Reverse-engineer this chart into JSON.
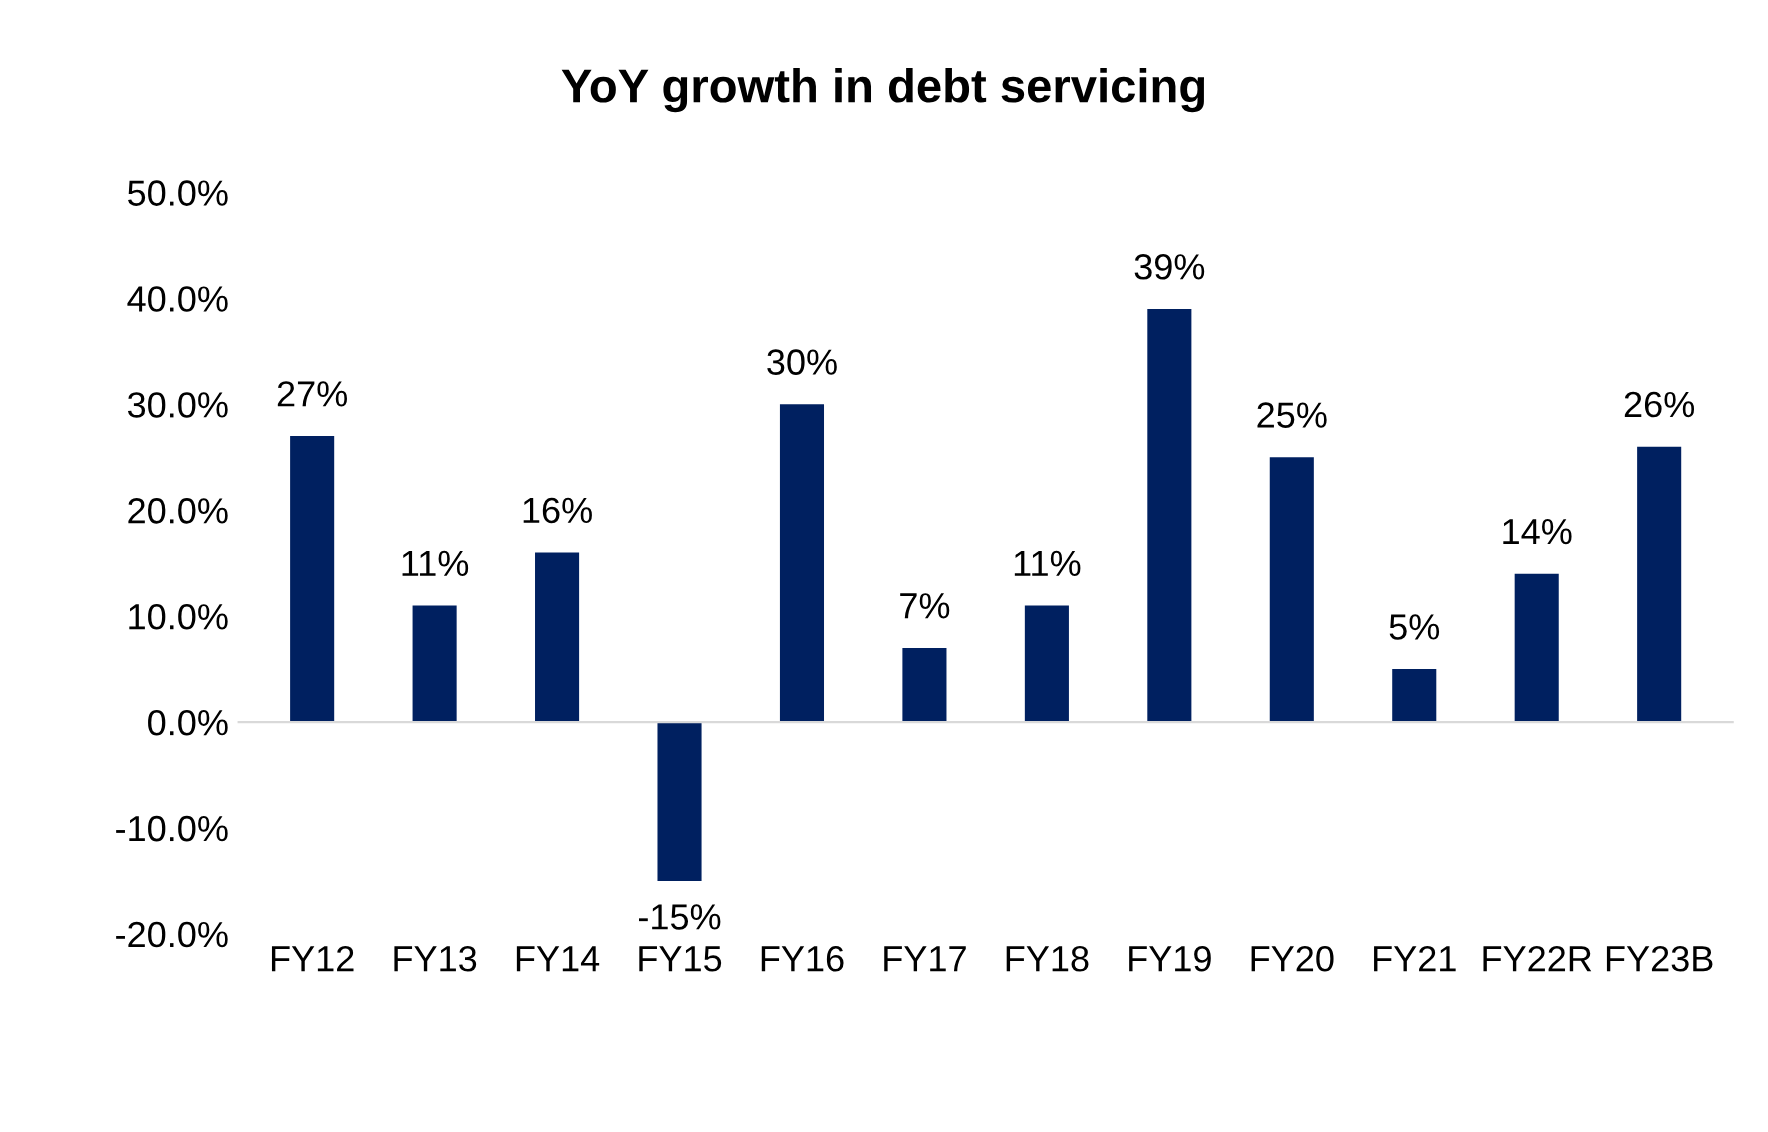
{
  "chart_data": {
    "type": "bar",
    "title": "YoY growth in debt servicing",
    "categories": [
      "FY12",
      "FY13",
      "FY14",
      "FY15",
      "FY16",
      "FY17",
      "FY18",
      "FY19",
      "FY20",
      "FY21",
      "FY22R",
      "FY23B"
    ],
    "values": [
      27,
      11,
      16,
      -15,
      30,
      7,
      11,
      39,
      25,
      5,
      14,
      26
    ],
    "value_labels": [
      "27%",
      "11%",
      "16%",
      "-15%",
      "30%",
      "7%",
      "11%",
      "39%",
      "25%",
      "5%",
      "14%",
      "26%"
    ],
    "color": "#002060",
    "ylim": [
      -20,
      50
    ],
    "yticks": [
      {
        "value": -20,
        "label": "-20.0%"
      },
      {
        "value": -10,
        "label": "-10.0%"
      },
      {
        "value": 0,
        "label": "0.0%"
      },
      {
        "value": 10,
        "label": "10.0%"
      },
      {
        "value": 20,
        "label": "20.0%"
      },
      {
        "value": 30,
        "label": "30.0%"
      },
      {
        "value": 40,
        "label": "40.0%"
      },
      {
        "value": 50,
        "label": "50.0%"
      }
    ],
    "legend": false
  }
}
